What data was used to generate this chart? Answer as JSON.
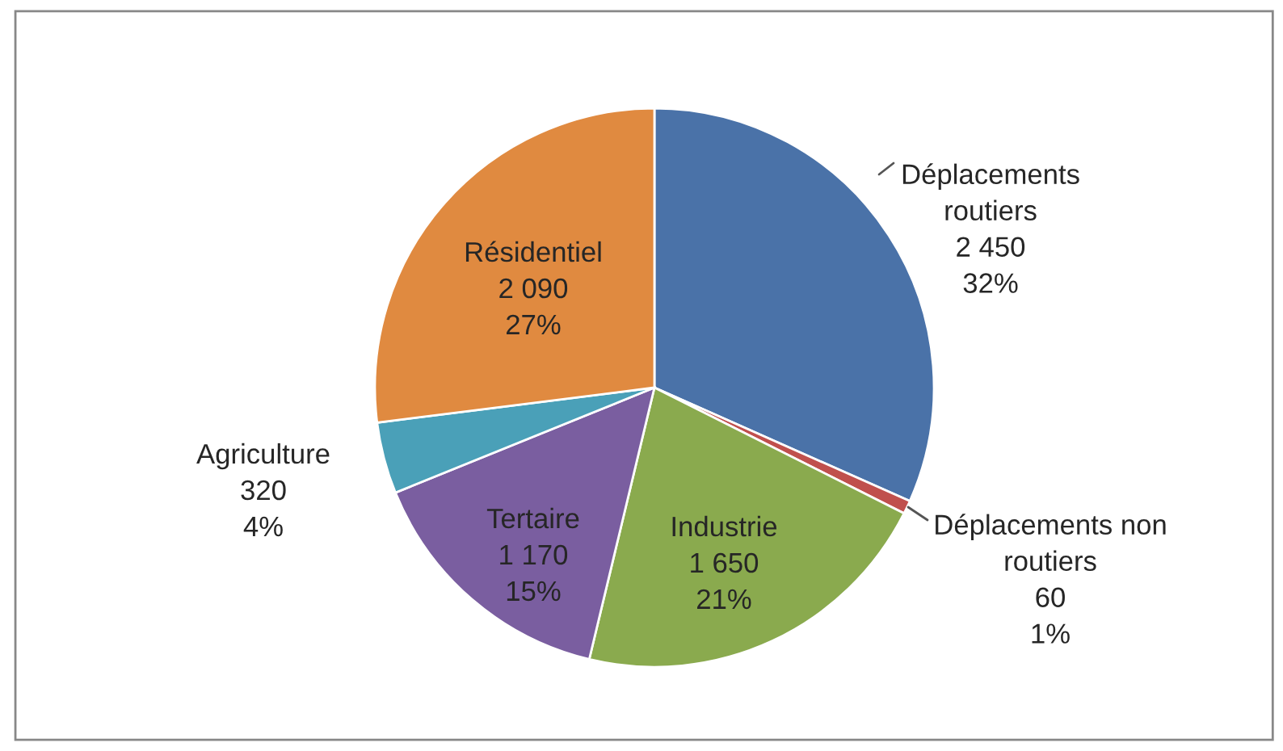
{
  "chart_data": {
    "type": "pie",
    "categories": [
      "Déplacements routiers",
      "Déplacements non routiers",
      "Industrie",
      "Tertaire",
      "Agriculture",
      "Résidentiel"
    ],
    "values": [
      2450,
      60,
      1650,
      1170,
      320,
      2090
    ],
    "value_labels": [
      "2 450\n32%",
      "60\n1%",
      "1 650\n21%",
      "1 170\n15%",
      "320\n4%",
      "2 090\n27%"
    ],
    "colors": [
      "#4a72a8",
      "#c0504d",
      "#8aaa4e",
      "#7a5ea0",
      "#4aa0b8",
      "#e08a40"
    ],
    "legend": false
  }
}
